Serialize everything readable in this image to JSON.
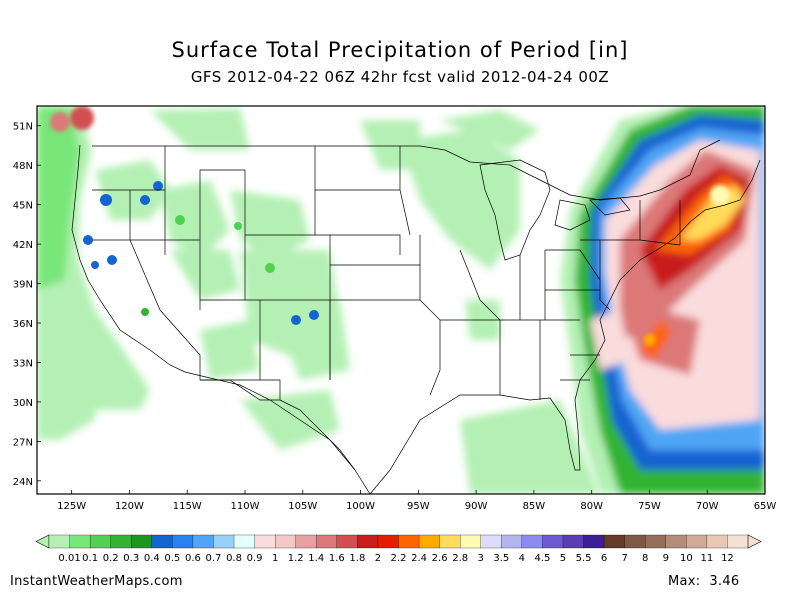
{
  "title": "Surface Total Precipitation of Period [in]",
  "subtitle": "GFS 2012-04-22 06Z 42hr fcst valid 2012-04-24 00Z",
  "map": {
    "lat_labels": [
      "51N",
      "48N",
      "45N",
      "42N",
      "39N",
      "36N",
      "33N",
      "30N",
      "27N",
      "24N"
    ],
    "lon_labels": [
      "125W",
      "120W",
      "115W",
      "110W",
      "105W",
      "100W",
      "95W",
      "90W",
      "85W",
      "80W",
      "75W",
      "70W",
      "65W"
    ],
    "extent": {
      "lon_min": -128,
      "lon_max": -65,
      "lat_min": 23,
      "lat_max": 52.5
    }
  },
  "colorbar": {
    "labels": [
      "0.01",
      "0.1",
      "0.2",
      "0.3",
      "0.4",
      "0.5",
      "0.6",
      "0.7",
      "0.8",
      "0.9",
      "1",
      "1.2",
      "1.4",
      "1.6",
      "1.8",
      "2",
      "2.2",
      "2.4",
      "2.6",
      "2.8",
      "3",
      "3.5",
      "4",
      "4.5",
      "5",
      "5.5",
      "6",
      "7",
      "8",
      "9",
      "10",
      "11",
      "12"
    ],
    "colors": [
      "#b4f0b4",
      "#78e678",
      "#50d250",
      "#32b432",
      "#1e961e",
      "#1464d2",
      "#2882f0",
      "#50a5f5",
      "#96d2fa",
      "#e1ffff",
      "#fadcdc",
      "#f5c8c8",
      "#e6a0a0",
      "#dc7878",
      "#d25050",
      "#c81e1e",
      "#e61e00",
      "#ff6400",
      "#ffaa00",
      "#ffdc5a",
      "#fffab4",
      "#dcdcff",
      "#b4b4f0",
      "#8c8cf0",
      "#6e5ad2",
      "#5a3cb4",
      "#3c1e96",
      "#643c28",
      "#7d5a46",
      "#966e5a",
      "#b48c78",
      "#d2aa96",
      "#e6c8b4",
      "#f5e1d2"
    ]
  },
  "footer": {
    "source": "InstantWeatherMaps.com",
    "max_label": "Max:",
    "max_value": "3.46"
  }
}
